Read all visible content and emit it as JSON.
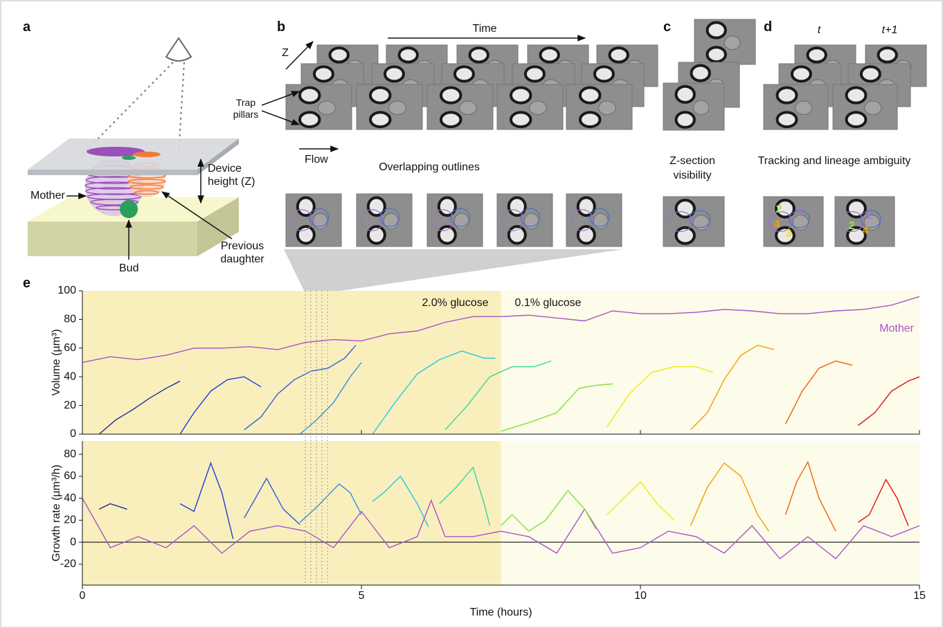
{
  "panel_labels": [
    "a",
    "b",
    "c",
    "d",
    "e"
  ],
  "panel_a": {
    "device_height": "Device height (Z)",
    "mother": "Mother",
    "previous_daughter": "Previous daughter",
    "bud": "Bud"
  },
  "panel_b": {
    "time": "Time",
    "z": "Z",
    "trap_pillars": "Trap pillars",
    "flow": "Flow",
    "caption": "Overlapping outlines"
  },
  "panel_c": {
    "caption": "Z-section visibility"
  },
  "panel_d": {
    "t": "t",
    "t_next": "t+1",
    "caption": "Tracking and lineage ambiguity",
    "cell_labels": [
      "2",
      "1",
      "4",
      "3",
      "1",
      "2",
      "4"
    ]
  },
  "chart_data": [
    {
      "type": "line",
      "ylabel": "Volume (µm³)",
      "xlim": [
        0,
        15
      ],
      "xticks": [
        0,
        5,
        10,
        15
      ],
      "ylim": [
        0,
        100
      ],
      "yticks": [
        0,
        20,
        40,
        60,
        80,
        100
      ],
      "regions": [
        {
          "label": "2.0% glucose",
          "xlim": [
            0,
            7.5
          ],
          "color": "#f9efbd"
        },
        {
          "label": "0.1% glucose",
          "xlim": [
            7.5,
            15
          ],
          "color": "#fdfbe9"
        }
      ],
      "series": [
        {
          "name": "Mother",
          "color": "#a852cc",
          "x": [
            0,
            0.5,
            1,
            1.5,
            2,
            2.5,
            3,
            3.5,
            4,
            4.5,
            5,
            5.5,
            6,
            6.5,
            7,
            7.5,
            8,
            8.5,
            9,
            9.5,
            10,
            10.5,
            11,
            11.5,
            12,
            12.5,
            13,
            13.5,
            14,
            14.5,
            15
          ],
          "values": [
            50,
            54,
            52,
            55,
            60,
            60,
            61,
            59,
            64,
            66,
            65,
            70,
            72,
            78,
            82,
            82,
            83,
            81,
            79,
            86,
            84,
            84,
            85,
            87,
            86,
            84,
            84,
            86,
            87,
            90,
            96
          ]
        },
        {
          "color": "#1a2a8a",
          "x": [
            0.3,
            0.6,
            0.9,
            1.2,
            1.5,
            1.75
          ],
          "values": [
            0,
            10,
            17,
            25,
            32,
            37
          ]
        },
        {
          "color": "#1a3ad8",
          "x": [
            1.75,
            2.0,
            2.3,
            2.6,
            2.9,
            3.2
          ],
          "values": [
            0,
            15,
            30,
            38,
            40,
            33
          ]
        },
        {
          "color": "#2a60d8",
          "x": [
            2.9,
            3.2,
            3.5,
            3.8,
            4.1,
            4.4,
            4.7,
            4.9
          ],
          "values": [
            3,
            12,
            28,
            38,
            44,
            46,
            53,
            62
          ]
        },
        {
          "color": "#2a90e0",
          "x": [
            3.9,
            4.2,
            4.5,
            4.8,
            5.0
          ],
          "values": [
            0,
            10,
            22,
            40,
            50
          ]
        },
        {
          "color": "#20c8e0",
          "x": [
            5.2,
            5.6,
            6.0,
            6.4,
            6.8,
            7.2,
            7.4
          ],
          "values": [
            0,
            22,
            42,
            52,
            58,
            53,
            53
          ]
        },
        {
          "color": "#30d8a0",
          "x": [
            6.5,
            6.9,
            7.3,
            7.7,
            8.1,
            8.4
          ],
          "values": [
            3,
            20,
            40,
            47,
            47,
            51
          ]
        },
        {
          "color": "#80e040",
          "x": [
            7.5,
            8.0,
            8.5,
            8.9,
            9.2,
            9.5
          ],
          "values": [
            2,
            8,
            15,
            32,
            34,
            35
          ]
        },
        {
          "color": "#eeea10",
          "x": [
            9.4,
            9.8,
            10.2,
            10.6,
            11.0,
            11.3
          ],
          "values": [
            5,
            28,
            43,
            47,
            47,
            43
          ]
        },
        {
          "color": "#f0a000",
          "x": [
            10.9,
            11.2,
            11.5,
            11.8,
            12.1,
            12.4
          ],
          "values": [
            3,
            15,
            38,
            55,
            62,
            59
          ]
        },
        {
          "color": "#f06010",
          "x": [
            12.6,
            12.9,
            13.2,
            13.5,
            13.8
          ],
          "values": [
            7,
            30,
            46,
            51,
            48
          ]
        },
        {
          "color": "#e01010",
          "x": [
            13.9,
            14.2,
            14.5,
            14.8,
            15.0
          ],
          "values": [
            6,
            15,
            30,
            37,
            40
          ]
        }
      ]
    },
    {
      "type": "line",
      "ylabel": "Growth rate (µm³/h)",
      "xlabel": "Time (hours)",
      "xlim": [
        0,
        15
      ],
      "xticks": [
        0,
        5,
        10,
        15
      ],
      "ylim": [
        -39,
        92
      ],
      "yticks": [
        -20,
        0,
        20,
        40,
        60,
        80
      ],
      "regions": [
        {
          "xlim": [
            0,
            7.5
          ],
          "color": "#f9efbd"
        },
        {
          "xlim": [
            7.5,
            15
          ],
          "color": "#fdfbe9"
        }
      ],
      "series": [
        {
          "color": "#a852cc",
          "x": [
            0,
            0.5,
            1,
            1.5,
            2,
            2.5,
            3,
            3.5,
            4,
            4.5,
            5,
            5.5,
            6,
            6.25,
            6.5,
            7,
            7.5,
            8,
            8.5,
            9,
            9.5,
            10,
            10.5,
            11,
            11.5,
            12,
            12.5,
            13,
            13.5,
            14,
            14.5,
            15
          ],
          "values": [
            40,
            -5,
            5,
            -5,
            15,
            -10,
            10,
            15,
            10,
            -5,
            28,
            -5,
            5,
            38,
            5,
            5,
            10,
            5,
            -10,
            30,
            -10,
            -5,
            10,
            5,
            -10,
            15,
            -15,
            5,
            -15,
            15,
            5,
            15
          ]
        },
        {
          "color": "#1a2a8a",
          "x": [
            0.3,
            0.5,
            0.8
          ],
          "values": [
            30,
            35,
            30
          ]
        },
        {
          "color": "#1a3ad8",
          "x": [
            1.75,
            2.0,
            2.3,
            2.5,
            2.7
          ],
          "values": [
            35,
            28,
            72,
            45,
            3
          ]
        },
        {
          "color": "#2a60d8",
          "x": [
            2.9,
            3.1,
            3.3,
            3.6,
            3.9
          ],
          "values": [
            22,
            40,
            58,
            30,
            16
          ]
        },
        {
          "color": "#2a90e0",
          "x": [
            3.9,
            4.2,
            4.6,
            4.8,
            5.0
          ],
          "values": [
            18,
            32,
            53,
            45,
            25
          ]
        },
        {
          "color": "#20c8e0",
          "x": [
            5.2,
            5.4,
            5.7,
            6.0,
            6.2
          ],
          "values": [
            37,
            45,
            60,
            35,
            14
          ]
        },
        {
          "color": "#30d8a0",
          "x": [
            6.4,
            6.7,
            7.0,
            7.2,
            7.3
          ],
          "values": [
            35,
            50,
            68,
            35,
            15
          ]
        },
        {
          "color": "#80e040",
          "x": [
            7.5,
            7.7,
            8.0,
            8.3,
            8.7,
            9.0,
            9.2
          ],
          "values": [
            15,
            25,
            10,
            20,
            47,
            30,
            12
          ]
        },
        {
          "color": "#eeea10",
          "x": [
            9.4,
            9.7,
            10.0,
            10.3,
            10.6
          ],
          "values": [
            25,
            40,
            55,
            35,
            20
          ]
        },
        {
          "color": "#f0a000",
          "x": [
            10.9,
            11.2,
            11.5,
            11.8,
            12.1,
            12.3
          ],
          "values": [
            15,
            50,
            72,
            60,
            25,
            10
          ]
        },
        {
          "color": "#f06010",
          "x": [
            12.6,
            12.8,
            13.0,
            13.2,
            13.5
          ],
          "values": [
            25,
            55,
            73,
            40,
            10
          ]
        },
        {
          "color": "#e01010",
          "x": [
            13.9,
            14.1,
            14.4,
            14.6,
            14.8
          ],
          "values": [
            18,
            25,
            57,
            40,
            15
          ]
        }
      ]
    }
  ]
}
